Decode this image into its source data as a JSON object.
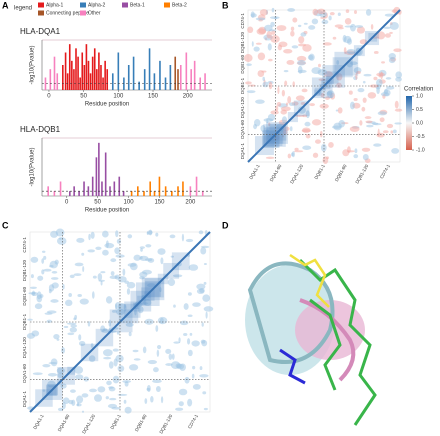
{
  "panel_letters": [
    "A",
    "B",
    "C",
    "D"
  ],
  "legend_title": "legend",
  "chart_data": [
    {
      "type": "bar",
      "title": "HLA-DQA1",
      "xlabel": "Residue position",
      "ylabel": "-log10(Pvalue)",
      "xlim": [
        -10,
        235
      ],
      "xticks": [
        0,
        50,
        100,
        150,
        200
      ],
      "ylim": [
        0,
        12
      ],
      "threshold": 1.5,
      "series": [
        {
          "name": "Alpha-1",
          "color": "#e41a1c",
          "x": [
            20,
            24,
            27,
            30,
            33,
            36,
            39,
            42,
            45,
            48,
            51,
            54,
            57,
            60,
            63,
            66,
            69,
            72,
            75,
            78,
            81,
            84
          ],
          "values": [
            6,
            9,
            4,
            11,
            7,
            5,
            10,
            8,
            3,
            9,
            6,
            11,
            7,
            4,
            8,
            10,
            5,
            9,
            6,
            3,
            7,
            5
          ]
        },
        {
          "name": "Alpha-2",
          "color": "#377eb8",
          "x": [
            92,
            100,
            108,
            115,
            122,
            130,
            138,
            145,
            152,
            160,
            168,
            175
          ],
          "values": [
            4,
            9,
            3,
            6,
            8,
            2,
            5,
            10,
            4,
            7,
            3,
            6
          ]
        },
        {
          "name": "Beta-1",
          "color": "#984ea3",
          "x": [],
          "values": []
        },
        {
          "name": "Beta-2",
          "color": "#ff7f00",
          "x": [],
          "values": []
        },
        {
          "name": "Connecting peptide",
          "color": "#a65628",
          "x": [
            182,
            186
          ],
          "values": [
            8,
            5
          ]
        },
        {
          "name": "Other",
          "color": "#f781bf",
          "x": [
            -5,
            2,
            8,
            12,
            190,
            198,
            205,
            210,
            218,
            225
          ],
          "values": [
            3,
            5,
            8,
            4,
            6,
            9,
            5,
            7,
            3,
            4
          ]
        }
      ]
    },
    {
      "type": "bar",
      "title": "HLA-DQB1",
      "xlabel": "Residue position",
      "ylabel": "-log10(Pvalue)",
      "xlim": [
        -40,
        235
      ],
      "xticks": [
        0,
        50,
        100,
        150,
        200
      ],
      "ylim": [
        0,
        12
      ],
      "threshold": 1,
      "series": [
        {
          "name": "Beta-1",
          "color": "#984ea3",
          "x": [
            5,
            12,
            20,
            28,
            35,
            42,
            48,
            52,
            57,
            63,
            70,
            77,
            85,
            92
          ],
          "values": [
            1,
            2,
            1,
            3,
            2,
            4,
            8,
            11,
            3,
            9,
            2,
            3,
            4,
            1
          ]
        },
        {
          "name": "Beta-2",
          "color": "#ff7f00",
          "x": [
            105,
            115,
            125,
            135,
            142,
            150,
            160,
            170,
            180,
            188
          ],
          "values": [
            1,
            2,
            1,
            3,
            1,
            4,
            2,
            1,
            2,
            3
          ]
        },
        {
          "name": "Other",
          "color": "#f781bf",
          "x": [
            -30,
            -20,
            -10,
            200,
            210,
            220
          ],
          "values": [
            2,
            1,
            3,
            2,
            4,
            1
          ]
        }
      ]
    }
  ],
  "panel_b": {
    "labels": [
      "DQA1-1",
      "DQA1-60",
      "DQA1-120",
      "DQB1-1",
      "DQB1-60",
      "DQB1-120",
      "CD74-1"
    ],
    "colorbar_title": "Correlation",
    "colorbar_lim": [
      -1,
      1
    ],
    "colorbar_ticks": [
      {
        "value": 1,
        "label": "1.0"
      },
      0.5,
      {
        "value": 0,
        "label": "0.0"
      },
      -0.5,
      {
        "value": -1,
        "label": "-1.0"
      }
    ]
  },
  "panel_c": {
    "labels": [
      "DQA1-1",
      "DQA1-60",
      "DQA1-120",
      "DQB1-1",
      "DQB1-60",
      "DQB1-120",
      "CD74-1"
    ]
  }
}
